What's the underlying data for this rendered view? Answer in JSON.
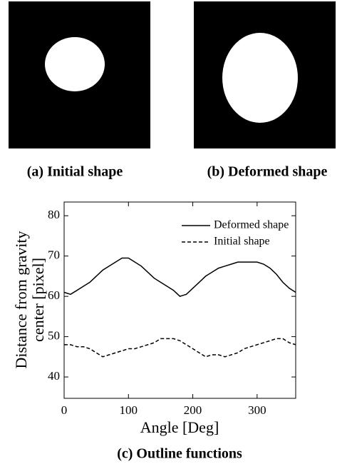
{
  "captions": [
    "(a) Initial shape",
    "(b) Deformed shape"
  ],
  "chart_data": {
    "type": "line",
    "caption": "(c) Outline functions",
    "xlabel": "Angle [Deg]",
    "ylabel": [
      "Distance from gravity",
      "center [pixel]"
    ],
    "x": [
      0,
      10,
      20,
      30,
      40,
      50,
      60,
      70,
      80,
      90,
      100,
      110,
      120,
      130,
      140,
      150,
      160,
      170,
      180,
      190,
      200,
      210,
      220,
      230,
      240,
      250,
      260,
      270,
      280,
      290,
      300,
      310,
      320,
      330,
      340,
      350,
      360
    ],
    "series": [
      {
        "name": "Deformed shape",
        "color": "#000000",
        "line_style": "solid",
        "values": [
          61,
          60.5,
          61.5,
          62.5,
          63.5,
          65,
          66.5,
          67.5,
          68.5,
          69.5,
          69.5,
          68.5,
          67.5,
          66,
          64.5,
          63.5,
          62.5,
          61.5,
          60,
          60.5,
          62,
          63.5,
          65,
          66,
          67,
          67.5,
          68,
          68.5,
          68.5,
          68.5,
          68.5,
          68,
          67,
          65.5,
          63.5,
          62,
          61
        ]
      },
      {
        "name": "Initial shape",
        "color": "#000000",
        "line_style": "dashed",
        "values": [
          48,
          48,
          47.5,
          47.5,
          47,
          46,
          45,
          45.5,
          46,
          46.5,
          47,
          47,
          47.5,
          48,
          48.5,
          49.5,
          49.5,
          49.5,
          49,
          48,
          47,
          46,
          45,
          45.5,
          45.5,
          45,
          45.5,
          46,
          47,
          47.5,
          48,
          48.5,
          49,
          49.5,
          49.5,
          48.5,
          48
        ]
      }
    ],
    "xlim": [
      0,
      360
    ],
    "xticks": [
      0,
      100,
      200,
      300
    ],
    "ylim": [
      34.7,
      83.4
    ],
    "yticks": [
      40,
      50,
      60,
      70,
      80
    ],
    "legend": "upper-right"
  }
}
